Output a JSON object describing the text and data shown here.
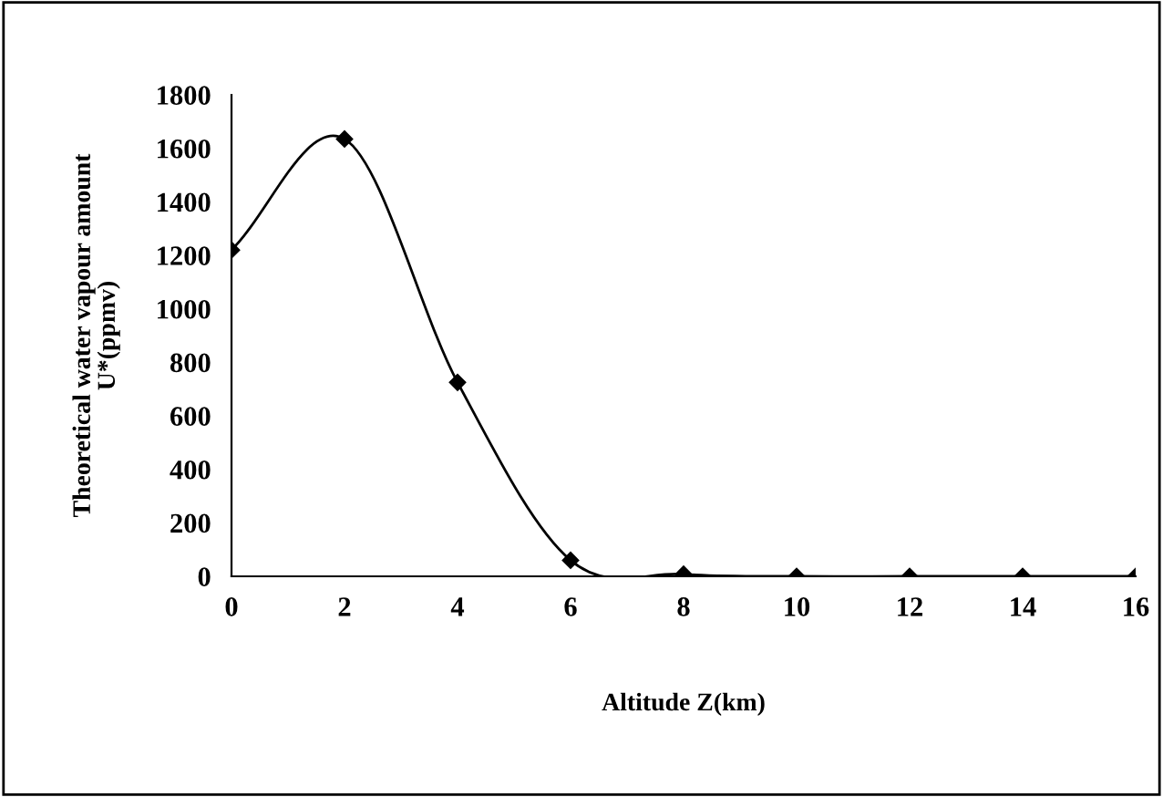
{
  "chart_data": {
    "type": "line",
    "xlabel": "Altitude Z(km)",
    "ylabel": "Theoretical water vapour amount\nU*(ppmv)",
    "x": [
      0,
      2,
      4,
      6,
      8,
      10,
      12,
      14,
      16
    ],
    "series": [
      {
        "color": "#000000",
        "values": [
          1220,
          1635,
          725,
          60,
          8,
          0,
          0,
          0,
          0
        ]
      }
    ],
    "xlim": [
      0,
      16
    ],
    "xticks": [
      0,
      2,
      4,
      6,
      8,
      10,
      12,
      14,
      16
    ],
    "ylim": [
      0,
      1800
    ],
    "yticks": [
      0,
      200,
      400,
      600,
      800,
      1000,
      1200,
      1400,
      1600,
      1800
    ],
    "marker": "diamond",
    "line_style": "solid",
    "grid": false,
    "legend": false
  }
}
